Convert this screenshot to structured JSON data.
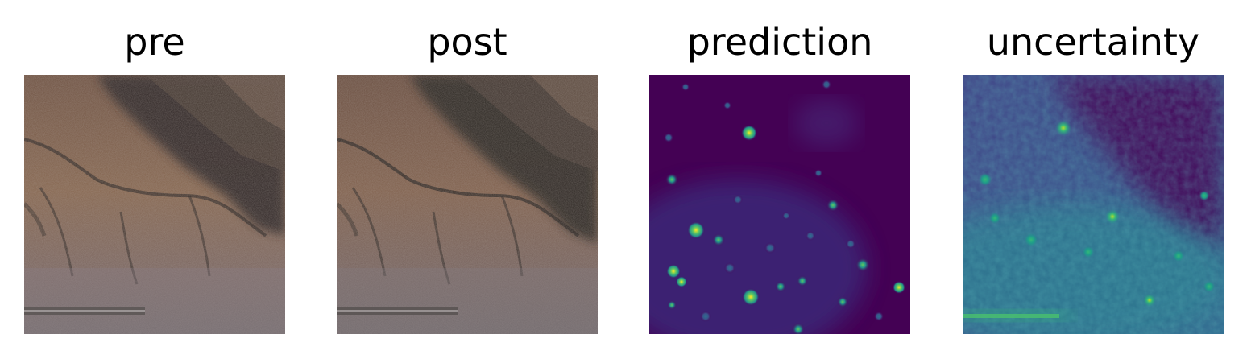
{
  "figure": {
    "panels": [
      {
        "title": "pre",
        "kind": "satellite-rgb"
      },
      {
        "title": "post",
        "kind": "satellite-rgb"
      },
      {
        "title": "prediction",
        "kind": "heatmap-viridis"
      },
      {
        "title": "uncertainty",
        "kind": "heatmap-viridis"
      }
    ]
  },
  "colors": {
    "viridis_low": "#440154",
    "viridis_mid": "#21918c",
    "viridis_high": "#fde725",
    "terrain_light": "#8a6a55",
    "terrain_dark": "#2a2523"
  }
}
